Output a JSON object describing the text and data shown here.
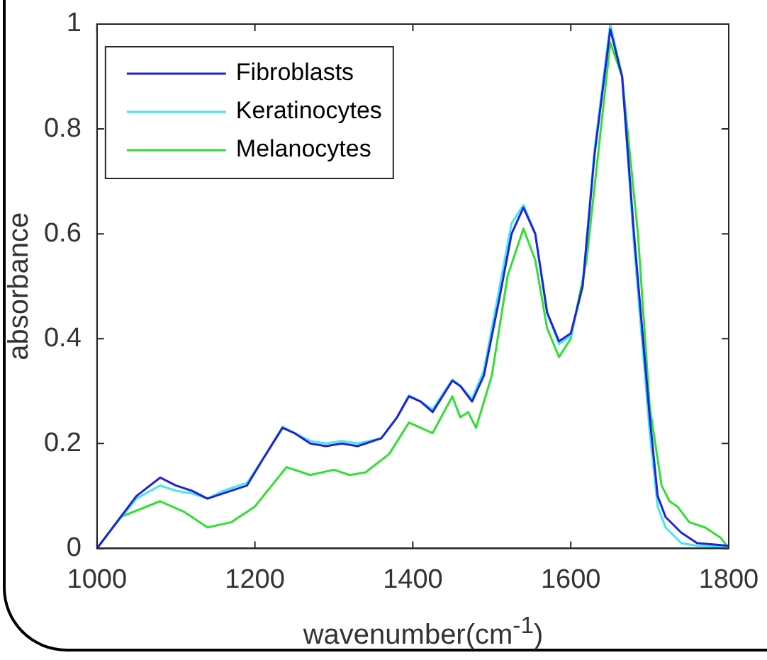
{
  "chart_data": {
    "type": "line",
    "xlabel": "wavenumber(cm$^{-1}$)",
    "ylabel": "absorbance",
    "xlim": [
      1000,
      1800
    ],
    "ylim": [
      0,
      1
    ],
    "xticks": [
      1000,
      1200,
      1400,
      1600,
      1800
    ],
    "yticks": [
      0,
      0.2,
      0.4,
      0.6,
      0.8,
      1
    ],
    "legend": "top left",
    "grid": false,
    "marker": "none",
    "line_style": "solid",
    "series": [
      {
        "name": "Fibroblasts",
        "color": "#2020e0",
        "x": [
          1000,
          1020,
          1050,
          1080,
          1100,
          1120,
          1140,
          1160,
          1190,
          1210,
          1235,
          1250,
          1270,
          1290,
          1310,
          1330,
          1360,
          1380,
          1395,
          1410,
          1425,
          1450,
          1460,
          1475,
          1490,
          1510,
          1525,
          1540,
          1555,
          1570,
          1585,
          1600,
          1615,
          1630,
          1650,
          1665,
          1680,
          1700,
          1710,
          1720,
          1740,
          1760,
          1800
        ],
        "values": [
          0,
          0.04,
          0.1,
          0.135,
          0.12,
          0.11,
          0.095,
          0.105,
          0.12,
          0.17,
          0.23,
          0.22,
          0.2,
          0.195,
          0.2,
          0.195,
          0.21,
          0.25,
          0.29,
          0.28,
          0.26,
          0.32,
          0.31,
          0.28,
          0.33,
          0.48,
          0.6,
          0.65,
          0.6,
          0.45,
          0.395,
          0.41,
          0.5,
          0.75,
          0.99,
          0.9,
          0.6,
          0.25,
          0.1,
          0.06,
          0.03,
          0.01,
          0.005
        ]
      },
      {
        "name": "Keratinocytes",
        "color": "#40e8f0",
        "x": [
          1000,
          1020,
          1050,
          1080,
          1100,
          1120,
          1140,
          1160,
          1190,
          1210,
          1235,
          1250,
          1270,
          1290,
          1310,
          1330,
          1360,
          1380,
          1395,
          1410,
          1425,
          1450,
          1460,
          1475,
          1490,
          1510,
          1525,
          1540,
          1555,
          1570,
          1585,
          1600,
          1615,
          1630,
          1650,
          1665,
          1680,
          1700,
          1710,
          1720,
          1740,
          1760,
          1800
        ],
        "values": [
          0,
          0.04,
          0.095,
          0.12,
          0.11,
          0.105,
          0.095,
          0.11,
          0.125,
          0.17,
          0.232,
          0.22,
          0.205,
          0.2,
          0.205,
          0.2,
          0.21,
          0.25,
          0.292,
          0.28,
          0.265,
          0.322,
          0.31,
          0.285,
          0.34,
          0.5,
          0.62,
          0.655,
          0.6,
          0.45,
          0.39,
          0.405,
          0.5,
          0.76,
          1,
          0.9,
          0.58,
          0.22,
          0.08,
          0.04,
          0.01,
          0.005,
          0.003
        ]
      },
      {
        "name": "Melanocytes",
        "color": "#30e030",
        "x": [
          1000,
          1030,
          1080,
          1110,
          1140,
          1170,
          1200,
          1240,
          1270,
          1300,
          1320,
          1340,
          1370,
          1395,
          1410,
          1425,
          1450,
          1460,
          1470,
          1480,
          1500,
          1520,
          1540,
          1555,
          1570,
          1585,
          1600,
          1620,
          1650,
          1665,
          1685,
          1700,
          1715,
          1725,
          1735,
          1750,
          1770,
          1790,
          1800
        ],
        "values": [
          0,
          0.06,
          0.09,
          0.07,
          0.04,
          0.05,
          0.08,
          0.155,
          0.14,
          0.15,
          0.14,
          0.145,
          0.18,
          0.24,
          0.23,
          0.22,
          0.29,
          0.25,
          0.26,
          0.23,
          0.33,
          0.52,
          0.61,
          0.55,
          0.42,
          0.365,
          0.4,
          0.55,
          0.965,
          0.9,
          0.6,
          0.27,
          0.12,
          0.09,
          0.08,
          0.05,
          0.04,
          0.02,
          0
        ]
      }
    ]
  }
}
